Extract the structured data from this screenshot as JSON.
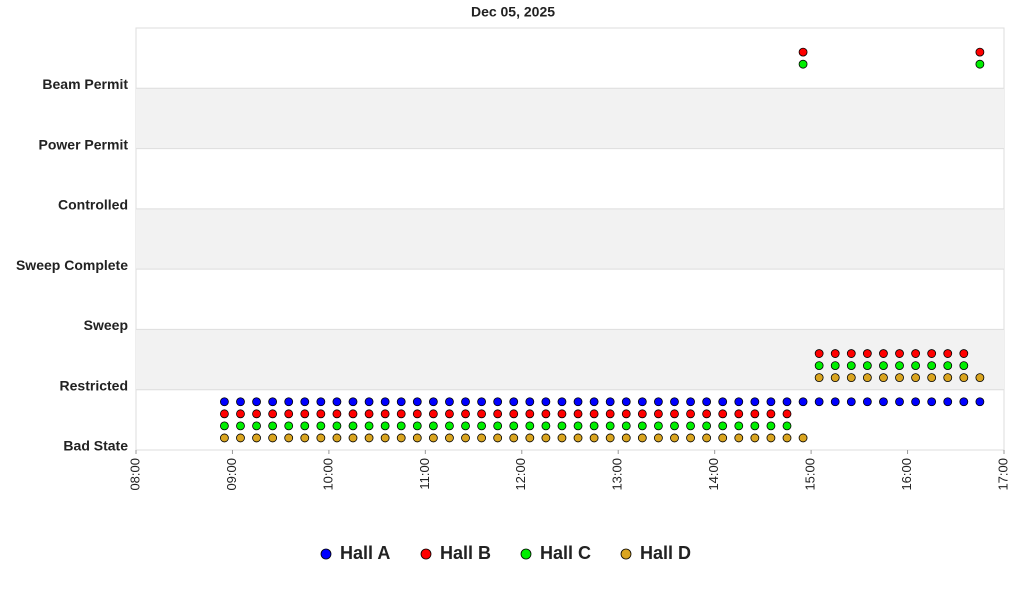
{
  "chart_data": {
    "type": "scatter",
    "title": "Dec 05, 2025",
    "x": [
      "08:55",
      "09:05",
      "09:15",
      "09:25",
      "09:35",
      "09:45",
      "09:55",
      "10:05",
      "10:15",
      "10:25",
      "10:35",
      "10:45",
      "10:55",
      "11:05",
      "11:15",
      "11:25",
      "11:35",
      "11:45",
      "11:55",
      "12:05",
      "12:15",
      "12:25",
      "12:35",
      "12:45",
      "12:55",
      "13:05",
      "13:15",
      "13:25",
      "13:35",
      "13:45",
      "13:55",
      "14:05",
      "14:15",
      "14:25",
      "14:35",
      "14:45",
      "14:55",
      "15:05",
      "15:15",
      "15:25",
      "15:35",
      "15:45",
      "15:55",
      "16:05",
      "16:15",
      "16:25",
      "16:35",
      "16:45"
    ],
    "xlim": [
      "08:00",
      "17:00"
    ],
    "xticks": [
      "08:00",
      "09:00",
      "10:00",
      "11:00",
      "12:00",
      "13:00",
      "14:00",
      "15:00",
      "16:00",
      "17:00"
    ],
    "ylim": [
      0,
      7
    ],
    "yticks": [
      {
        "value": 0,
        "label": "Bad State"
      },
      {
        "value": 1,
        "label": "Restricted"
      },
      {
        "value": 2,
        "label": "Sweep"
      },
      {
        "value": 3,
        "label": "Sweep Complete"
      },
      {
        "value": 4,
        "label": "Controlled"
      },
      {
        "value": 5,
        "label": "Power Permit"
      },
      {
        "value": 6,
        "label": "Beam Permit"
      }
    ],
    "legend": "bottom",
    "series": [
      {
        "name": "Hall A",
        "color": "#0000ff",
        "values": [
          0.8,
          0.8,
          0.8,
          0.8,
          0.8,
          0.8,
          0.8,
          0.8,
          0.8,
          0.8,
          0.8,
          0.8,
          0.8,
          0.8,
          0.8,
          0.8,
          0.8,
          0.8,
          0.8,
          0.8,
          0.8,
          0.8,
          0.8,
          0.8,
          0.8,
          0.8,
          0.8,
          0.8,
          0.8,
          0.8,
          0.8,
          0.8,
          0.8,
          0.8,
          0.8,
          0.8,
          0.8,
          0.8,
          0.8,
          0.8,
          0.8,
          0.8,
          0.8,
          0.8,
          0.8,
          0.8,
          0.8,
          0.8
        ]
      },
      {
        "name": "Hall B",
        "color": "#ff0000",
        "values": [
          0.6,
          0.6,
          0.6,
          0.6,
          0.6,
          0.6,
          0.6,
          0.6,
          0.6,
          0.6,
          0.6,
          0.6,
          0.6,
          0.6,
          0.6,
          0.6,
          0.6,
          0.6,
          0.6,
          0.6,
          0.6,
          0.6,
          0.6,
          0.6,
          0.6,
          0.6,
          0.6,
          0.6,
          0.6,
          0.6,
          0.6,
          0.6,
          0.6,
          0.6,
          0.6,
          0.6,
          6.6,
          1.6,
          1.6,
          1.6,
          1.6,
          1.6,
          1.6,
          1.6,
          1.6,
          1.6,
          1.6,
          6.6
        ]
      },
      {
        "name": "Hall C",
        "color": "#00ee00",
        "values": [
          0.4,
          0.4,
          0.4,
          0.4,
          0.4,
          0.4,
          0.4,
          0.4,
          0.4,
          0.4,
          0.4,
          0.4,
          0.4,
          0.4,
          0.4,
          0.4,
          0.4,
          0.4,
          0.4,
          0.4,
          0.4,
          0.4,
          0.4,
          0.4,
          0.4,
          0.4,
          0.4,
          0.4,
          0.4,
          0.4,
          0.4,
          0.4,
          0.4,
          0.4,
          0.4,
          0.4,
          6.4,
          1.4,
          1.4,
          1.4,
          1.4,
          1.4,
          1.4,
          1.4,
          1.4,
          1.4,
          1.4,
          6.4
        ]
      },
      {
        "name": "Hall D",
        "color": "#daa520",
        "values": [
          0.2,
          0.2,
          0.2,
          0.2,
          0.2,
          0.2,
          0.2,
          0.2,
          0.2,
          0.2,
          0.2,
          0.2,
          0.2,
          0.2,
          0.2,
          0.2,
          0.2,
          0.2,
          0.2,
          0.2,
          0.2,
          0.2,
          0.2,
          0.2,
          0.2,
          0.2,
          0.2,
          0.2,
          0.2,
          0.2,
          0.2,
          0.2,
          0.2,
          0.2,
          0.2,
          0.2,
          0.2,
          1.2,
          1.2,
          1.2,
          1.2,
          1.2,
          1.2,
          1.2,
          1.2,
          1.2,
          1.2,
          1.2
        ]
      }
    ]
  }
}
